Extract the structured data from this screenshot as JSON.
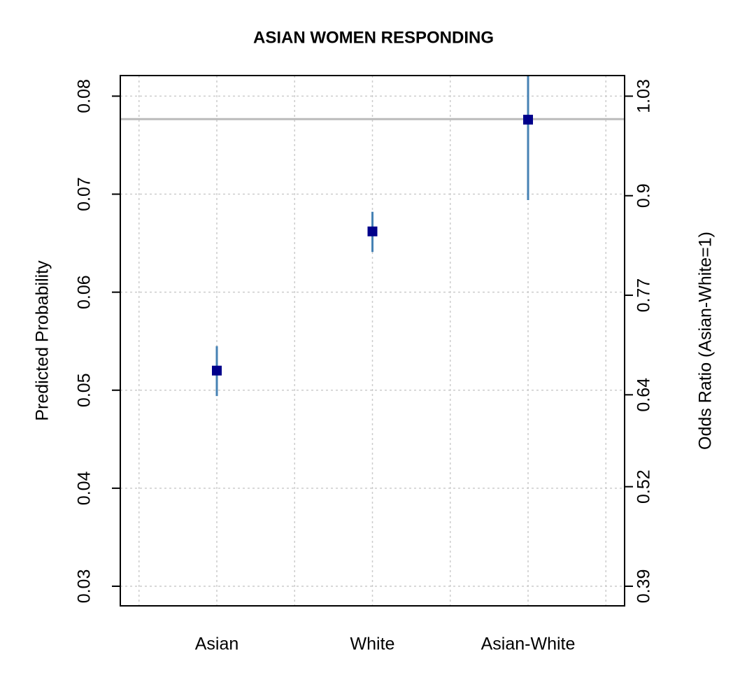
{
  "chart_data": {
    "type": "errorbar",
    "title": "ASIAN WOMEN RESPONDING",
    "ylabel": "Predicted Probability",
    "y2label": "Odds Ratio (Asian-White=1)",
    "categories": [
      "Asian",
      "White",
      "Asian-White"
    ],
    "series": [
      {
        "values": [
          0.052,
          0.0662,
          0.0776
        ],
        "lower": [
          0.0494,
          0.0641,
          0.0694
        ],
        "upper": [
          0.0545,
          0.0682,
          0.0825
        ],
        "color": "#00008b",
        "error_color": "#4682b4"
      }
    ],
    "ylim": [
      0.028,
      0.0821
    ],
    "yticks": [
      0.03,
      0.04,
      0.05,
      0.06,
      0.07,
      0.08
    ],
    "y2lim": [
      0.3644,
      1.0569
    ],
    "y2ticks": [
      0.39,
      0.52,
      0.64,
      0.77,
      0.9,
      1.03
    ],
    "reference_line": {
      "value": 1,
      "axis": "y2",
      "color": "#bbbbbb"
    },
    "grid": true
  }
}
